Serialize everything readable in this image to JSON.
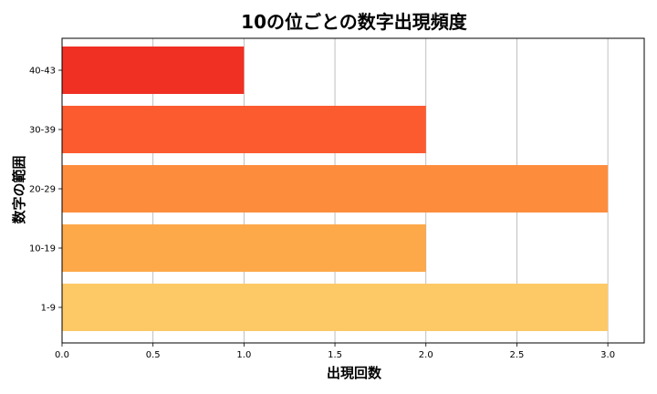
{
  "chart_data": {
    "type": "bar",
    "orientation": "horizontal",
    "title": "10の位ごとの数字出現頻度",
    "xlabel": "出現回数",
    "ylabel": "数字の範囲",
    "categories": [
      "1-9",
      "10-19",
      "20-29",
      "30-39",
      "40-43"
    ],
    "values": [
      3,
      2,
      3,
      2,
      1
    ],
    "colors": [
      "#fdc966",
      "#fda94a",
      "#fd8d3c",
      "#fc5b30",
      "#f03023"
    ],
    "xlim": [
      0,
      3.2
    ],
    "xticks": [
      0.0,
      0.5,
      1.0,
      1.5,
      2.0,
      2.5,
      3.0
    ],
    "xtick_labels": [
      "0.0",
      "0.5",
      "1.0",
      "1.5",
      "2.0",
      "2.5",
      "3.0"
    ],
    "grid": "vertical"
  }
}
